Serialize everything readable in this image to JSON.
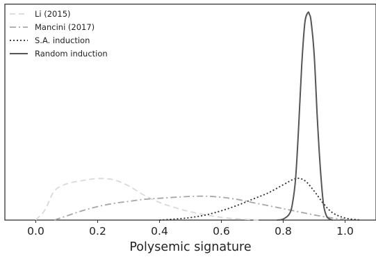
{
  "chart_data": {
    "type": "line",
    "title": "",
    "xlabel": "Polysemic signature",
    "ylabel": "",
    "xlim": [
      -0.1,
      1.1
    ],
    "ylim": [
      0,
      1
    ],
    "x_ticks": [
      "0.0",
      "0.2",
      "0.4",
      "0.6",
      "0.8",
      "1.0"
    ],
    "x_tick_values": [
      0.0,
      0.2,
      0.4,
      0.6,
      0.8,
      1.0
    ],
    "y_ticks_visible": false,
    "grid": false,
    "legend_position": "top-left",
    "series": [
      {
        "name": "Li (2015)",
        "color": "#d9d9d9",
        "style": "dashed",
        "x": [
          0.0,
          0.03,
          0.06,
          0.1,
          0.15,
          0.2,
          0.25,
          0.3,
          0.35,
          0.4,
          0.45,
          0.5,
          0.55,
          0.6,
          0.65,
          0.7,
          0.72
        ],
        "y": [
          0.0,
          0.05,
          0.14,
          0.175,
          0.19,
          0.2,
          0.195,
          0.165,
          0.12,
          0.085,
          0.06,
          0.04,
          0.025,
          0.013,
          0.006,
          0.002,
          0.0
        ]
      },
      {
        "name": "Mancini (2017)",
        "color": "#a6a6a6",
        "style": "dashdot",
        "x": [
          0.06,
          0.1,
          0.15,
          0.2,
          0.25,
          0.3,
          0.35,
          0.4,
          0.45,
          0.5,
          0.55,
          0.6,
          0.65,
          0.7,
          0.75,
          0.8,
          0.85,
          0.9,
          0.95,
          1.0
        ],
        "y": [
          0.0,
          0.02,
          0.045,
          0.065,
          0.08,
          0.09,
          0.1,
          0.105,
          0.11,
          0.114,
          0.115,
          0.11,
          0.1,
          0.085,
          0.07,
          0.055,
          0.04,
          0.025,
          0.012,
          0.003
        ]
      },
      {
        "name": "S.A. induction",
        "color": "#2a2a2a",
        "style": "dotted",
        "x": [
          0.4,
          0.45,
          0.5,
          0.55,
          0.6,
          0.65,
          0.7,
          0.75,
          0.8,
          0.84,
          0.87,
          0.9,
          0.93,
          0.96,
          1.0,
          1.05
        ],
        "y": [
          0.0,
          0.005,
          0.012,
          0.025,
          0.045,
          0.07,
          0.1,
          0.13,
          0.17,
          0.2,
          0.19,
          0.14,
          0.08,
          0.035,
          0.01,
          0.0
        ]
      },
      {
        "name": "Random induction",
        "color": "#555555",
        "style": "solid",
        "x": [
          0.78,
          0.8,
          0.82,
          0.83,
          0.84,
          0.85,
          0.86,
          0.87,
          0.88,
          0.885,
          0.89,
          0.9,
          0.91,
          0.92,
          0.93,
          0.94,
          0.95,
          0.96
        ],
        "y": [
          0.0,
          0.005,
          0.03,
          0.08,
          0.2,
          0.45,
          0.75,
          0.95,
          1.0,
          0.99,
          0.96,
          0.8,
          0.5,
          0.25,
          0.08,
          0.02,
          0.005,
          0.0
        ]
      }
    ]
  }
}
